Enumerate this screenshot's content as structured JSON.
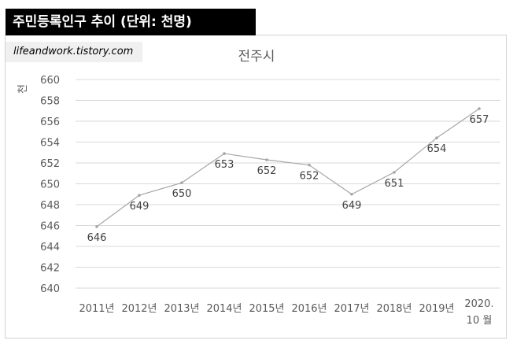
{
  "header": {
    "title": "주민등록인구 추이 (단위: 천명)"
  },
  "site": {
    "text": "lifeandwork.tistory.com"
  },
  "colors": {
    "line": "#a6a6a6",
    "grid": "#d9d9d9",
    "text": "#595959",
    "header_bg": "#000000"
  },
  "chart_data": {
    "type": "line",
    "title": "전주시",
    "ylabel": "천",
    "xlabel": "",
    "ylim": [
      640,
      660
    ],
    "yticks": [
      640,
      642,
      644,
      646,
      648,
      650,
      652,
      654,
      656,
      658,
      660
    ],
    "categories": [
      "2011년",
      "2012년",
      "2013년",
      "2014년",
      "2015년",
      "2016년",
      "2017년",
      "2018년",
      "2019년",
      "2020. 10 월"
    ],
    "category_lines": [
      [
        "2011년"
      ],
      [
        "2012년"
      ],
      [
        "2013년"
      ],
      [
        "2014년"
      ],
      [
        "2015년"
      ],
      [
        "2016년"
      ],
      [
        "2017년"
      ],
      [
        "2018년"
      ],
      [
        "2019년"
      ],
      [
        "2020.",
        "10 월"
      ]
    ],
    "values": [
      645.9,
      648.9,
      650.1,
      652.9,
      652.3,
      651.8,
      649.0,
      651.1,
      654.4,
      657.2
    ],
    "data_labels": [
      "646",
      "649",
      "650",
      "653",
      "652",
      "652",
      "649",
      "651",
      "654",
      "657"
    ],
    "label_positions": [
      "below",
      "below",
      "below",
      "below",
      "below",
      "below",
      "below",
      "below",
      "below",
      "below"
    ],
    "grid": true,
    "legend": "none"
  }
}
